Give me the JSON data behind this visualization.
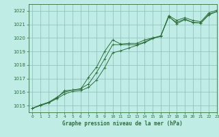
{
  "title": "Graphe pression niveau de la mer (hPa)",
  "bg_color": "#c0ece6",
  "grid_color": "#8abfba",
  "line_color": "#2d6e3a",
  "xlim": [
    -0.5,
    23
  ],
  "ylim": [
    1014.5,
    1022.5
  ],
  "yticks": [
    1015,
    1016,
    1017,
    1018,
    1019,
    1020,
    1021,
    1022
  ],
  "xticks": [
    0,
    1,
    2,
    3,
    4,
    5,
    6,
    7,
    8,
    9,
    10,
    11,
    12,
    13,
    14,
    15,
    16,
    17,
    18,
    19,
    20,
    21,
    22,
    23
  ],
  "series": [
    [
      1014.8,
      1015.05,
      1015.2,
      1015.55,
      1016.1,
      1016.15,
      1016.2,
      1017.1,
      1017.85,
      1019.0,
      1019.85,
      1019.55,
      1019.6,
      1019.6,
      1019.85,
      1020.0,
      1020.1,
      1021.65,
      1021.3,
      1021.5,
      1021.3,
      1021.2,
      1021.85,
      1022.05
    ],
    [
      1014.8,
      1015.05,
      1015.25,
      1015.6,
      1016.0,
      1016.15,
      1016.25,
      1016.6,
      1017.45,
      1018.45,
      1019.5,
      1019.5,
      1019.5,
      1019.5,
      1019.7,
      1020.0,
      1020.15,
      1021.55,
      1021.15,
      1021.4,
      1021.15,
      1021.1,
      1021.75,
      1021.95
    ],
    [
      1014.8,
      1015.0,
      1015.2,
      1015.5,
      1015.85,
      1016.05,
      1016.1,
      1016.35,
      1016.9,
      1017.8,
      1018.9,
      1019.05,
      1019.25,
      1019.45,
      1019.65,
      1019.95,
      1020.15,
      1021.6,
      1021.05,
      1021.35,
      1021.15,
      1021.1,
      1021.7,
      1021.95
    ]
  ]
}
